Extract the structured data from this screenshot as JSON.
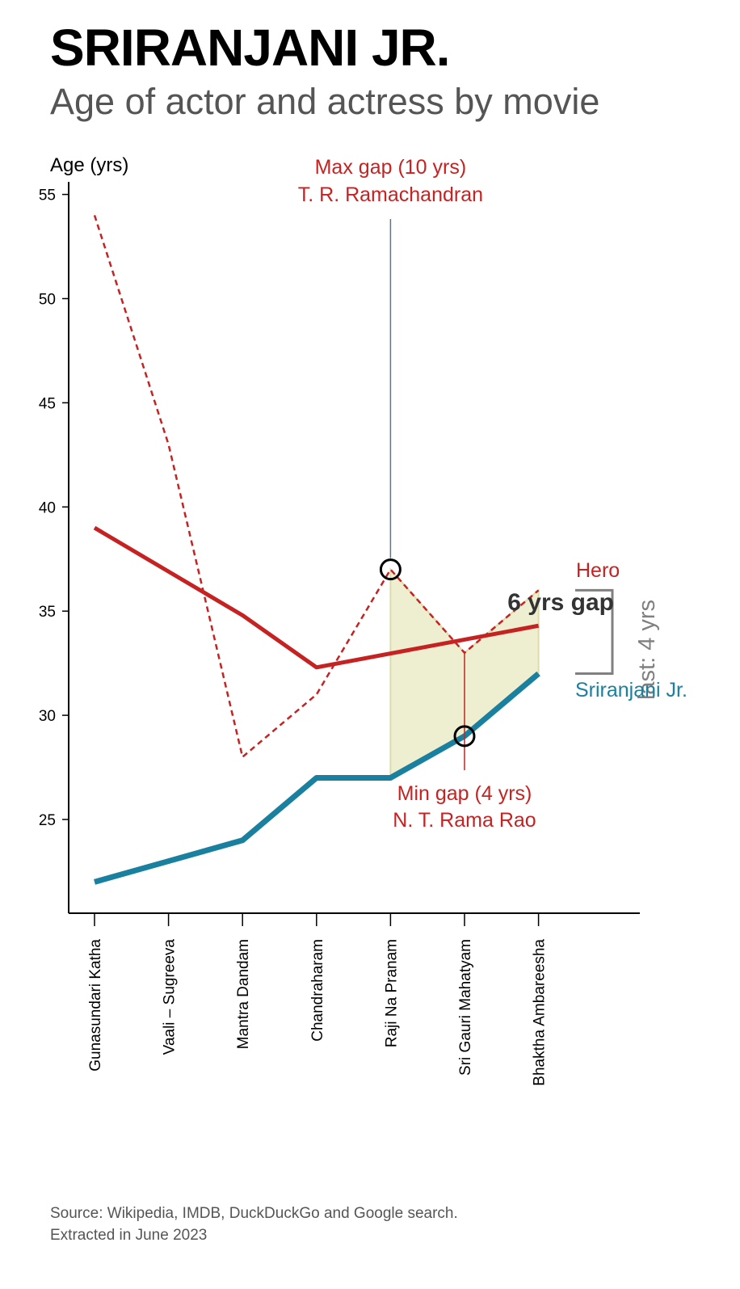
{
  "title": "SRIRANJANI JR.",
  "subtitle": "Age of actor and actress by movie",
  "source": {
    "line1": "Source: Wikipedia, IMDB, DuckDuckGo and Google search.",
    "line2": "Extracted in June 2023"
  },
  "colors": {
    "hero": "#c62222",
    "actress": "#1a80a0",
    "fill": "#eeeed0",
    "annotation_line": "#567a8a",
    "gap_bracket": "#808080"
  },
  "chart_data": {
    "type": "line",
    "ylabel": "Age (yrs)",
    "ylim": [
      20.5,
      55.6
    ],
    "yticks": [
      25,
      30,
      35,
      40,
      45,
      50,
      55
    ],
    "categories": [
      "Gunasundari Katha",
      "Vaali – Sugreeva",
      "Mantra Dandam",
      "Chandraharam",
      "Raji Na Pranam",
      "Sri Gauri Mahatyam",
      "Bhaktha Ambareesha"
    ],
    "series": [
      {
        "name": "Sriranjani Jr.",
        "values": [
          22,
          23,
          24,
          27,
          27,
          29,
          32
        ],
        "style": "solid"
      },
      {
        "name": "Hero",
        "values": [
          54,
          43,
          28,
          31,
          37,
          33,
          36
        ],
        "style": "dashed"
      },
      {
        "name": "Hero",
        "values": [
          39,
          null,
          34.8,
          32.3,
          null,
          null,
          34.3
        ],
        "style": "solid-trend"
      }
    ],
    "shaded_range": {
      "from_category": 4,
      "to_category": 6
    },
    "annotations": {
      "max_gap_line1": "Max gap (10 yrs)",
      "max_gap_line2": "T. R. Ramachandran",
      "max_gap_category": 4,
      "min_gap_line1": "Min gap (4 yrs)",
      "min_gap_line2": "N. T. Rama Rao",
      "min_gap_category": 5,
      "avg_gap": "6 yrs gap",
      "last_gap": "last: 4 yrs",
      "hero_label": "Hero",
      "actress_label": "Sriranjani Jr."
    }
  }
}
